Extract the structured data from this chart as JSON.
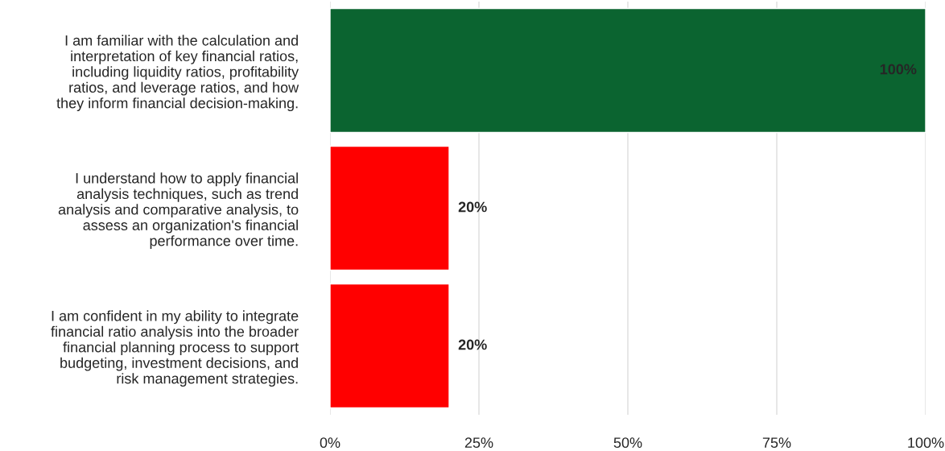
{
  "chart_data": {
    "type": "bar",
    "orientation": "horizontal",
    "categories": [
      "I am familiar with the calculation and\ninterpretation of key financial ratios,\nincluding liquidity ratios, profitability\nratios, and leverage ratios, and how\nthey inform financial decision-making.",
      "I understand how to apply financial\nanalysis techniques, such as trend\nanalysis and comparative analysis, to\nassess an organization's financial\nperformance over time.",
      "I am confident in my ability to integrate\nfinancial ratio analysis into the broader\nfinancial planning process to support\nbudgeting, investment decisions, and\nrisk management strategies."
    ],
    "values": [
      100,
      20,
      20
    ],
    "colors": [
      "#0b6430",
      "#ff0000",
      "#ff0000"
    ],
    "value_labels": [
      "100%",
      "20%",
      "20%"
    ],
    "xlim": [
      0,
      100
    ],
    "xticks": [
      {
        "value": 0,
        "label": "0%"
      },
      {
        "value": 25,
        "label": "25%"
      },
      {
        "value": 50,
        "label": "50%"
      },
      {
        "value": 75,
        "label": "75%"
      },
      {
        "value": 100,
        "label": "100%"
      }
    ],
    "grid": "x"
  }
}
